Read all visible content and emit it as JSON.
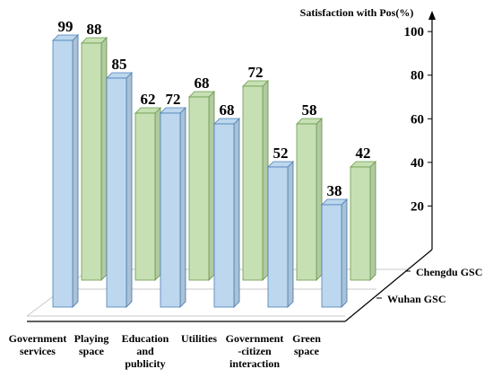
{
  "chart_data": {
    "type": "bar3d",
    "y_label": "Satisfaction with Pos(%)",
    "categories": [
      "Government\nservices",
      "Playing\nspace",
      "Education\nand\npublicity",
      "Utilities",
      "Government\n-citizen\ninteraction",
      "Green\nspace"
    ],
    "series": [
      {
        "name": "Wuhan GSC",
        "color": "#bdd7ee",
        "values": [
          99,
          85,
          72,
          68,
          52,
          38
        ]
      },
      {
        "name": "Chengdu GSC",
        "color": "#c6e0b4",
        "values": [
          88,
          62,
          68,
          72,
          58,
          42
        ]
      }
    ],
    "ylim": [
      0,
      105
    ],
    "yticks": [
      20,
      40,
      60,
      80,
      100
    ]
  }
}
